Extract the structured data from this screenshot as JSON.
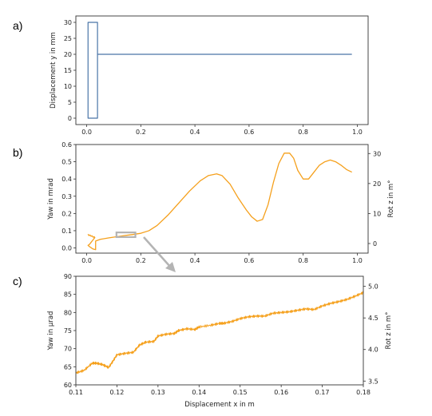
{
  "panel_labels": [
    "a)",
    "b)",
    "c)"
  ],
  "colors": {
    "blue": "#4a75a8",
    "orange": "#f5a01c",
    "gray": "#b4b4b4",
    "axis": "#333333"
  },
  "chart_data": [
    {
      "type": "line",
      "panel": "a)",
      "ylabel": "Displacement y in mm",
      "xlim": [
        -0.04,
        1.04
      ],
      "ylim": [
        -2,
        32
      ],
      "xticks": [
        "0.0",
        "0.2",
        "0.4",
        "0.6",
        "0.8",
        "1.0"
      ],
      "yticks": [
        "0",
        "5",
        "10",
        "15",
        "20",
        "25",
        "30"
      ],
      "series": [
        {
          "x": [
            0.005,
            0.005,
            0.04,
            0.04,
            0.005,
            0.005,
            0.04,
            0.04,
            0.98
          ],
          "y": [
            0,
            30,
            30,
            0,
            0,
            30,
            30,
            20,
            20
          ]
        }
      ]
    },
    {
      "type": "line",
      "panel": "b)",
      "ylabel": "Yaw in mrad",
      "y2label": "Rot z in m°",
      "xlim": [
        -0.04,
        1.04
      ],
      "ylim": [
        -0.03,
        0.6
      ],
      "y2lim": [
        -3.2,
        33
      ],
      "xticks": [
        "0.0",
        "0.2",
        "0.4",
        "0.6",
        "0.8",
        "1.0"
      ],
      "yticks": [
        "0.0",
        "0.1",
        "0.2",
        "0.3",
        "0.4",
        "0.5",
        "0.6"
      ],
      "y2ticks": [
        "0",
        "10",
        "20",
        "30"
      ],
      "inset_box": {
        "x": [
          0.11,
          0.18
        ],
        "y": [
          0.063,
          0.09
        ]
      },
      "series": [
        {
          "x": [
            0.005,
            0.008,
            0.012,
            0.016,
            0.02,
            0.024,
            0.028,
            0.03,
            0.03,
            0.025,
            0.02,
            0.015,
            0.01,
            0.005,
            0.005,
            0.01,
            0.016,
            0.022,
            0.028,
            0.033,
            0.033,
            0.05,
            0.08,
            0.11,
            0.14,
            0.17,
            0.2,
            0.23,
            0.26,
            0.3,
            0.34,
            0.38,
            0.42,
            0.45,
            0.48,
            0.5,
            0.53,
            0.56,
            0.59,
            0.61,
            0.63,
            0.65,
            0.67,
            0.69,
            0.71,
            0.73,
            0.75,
            0.765,
            0.78,
            0.8,
            0.82,
            0.84,
            0.86,
            0.88,
            0.9,
            0.92,
            0.94,
            0.96,
            0.98
          ],
          "y": [
            0.08,
            0.072,
            0.075,
            0.068,
            0.07,
            0.062,
            0.065,
            0.06,
            0.06,
            0.05,
            0.04,
            0.03,
            0.02,
            0.015,
            0.015,
            0.008,
            0.002,
            -0.005,
            -0.008,
            -0.01,
            0.04,
            0.05,
            0.058,
            0.065,
            0.072,
            0.078,
            0.085,
            0.1,
            0.13,
            0.19,
            0.26,
            0.33,
            0.39,
            0.42,
            0.43,
            0.42,
            0.37,
            0.29,
            0.22,
            0.18,
            0.155,
            0.165,
            0.25,
            0.38,
            0.49,
            0.55,
            0.55,
            0.52,
            0.45,
            0.4,
            0.4,
            0.44,
            0.48,
            0.5,
            0.51,
            0.5,
            0.48,
            0.455,
            0.44
          ]
        }
      ]
    },
    {
      "type": "line",
      "panel": "c)",
      "xlabel": "Displacement x in m",
      "ylabel": "Yaw in µrad",
      "y2label": "Rot z in m°",
      "xlim": [
        0.11,
        0.18
      ],
      "ylim": [
        60,
        90
      ],
      "y2lim": [
        3.44,
        5.16
      ],
      "xticks": [
        "0.11",
        "0.12",
        "0.13",
        "0.14",
        "0.15",
        "0.16",
        "0.17",
        "0.18"
      ],
      "yticks": [
        "60",
        "65",
        "70",
        "75",
        "80",
        "85",
        "90"
      ],
      "y2ticks": [
        "3.5",
        "4.0",
        "4.5",
        "5.0"
      ],
      "series": [
        {
          "x": [
            0.11,
            0.112,
            0.114,
            0.115,
            0.1165,
            0.118,
            0.119,
            0.12,
            0.122,
            0.124,
            0.1255,
            0.127,
            0.129,
            0.13,
            0.132,
            0.134,
            0.135,
            0.137,
            0.139,
            0.14,
            0.143,
            0.145,
            0.146,
            0.148,
            0.15,
            0.152,
            0.154,
            0.156,
            0.158,
            0.16,
            0.162,
            0.164,
            0.166,
            0.168,
            0.17,
            0.172,
            0.174,
            0.176,
            0.178,
            0.18
          ],
          "y": [
            63.3,
            64.0,
            66.0,
            66.0,
            65.6,
            64.8,
            66.5,
            68.3,
            68.7,
            69.0,
            71.0,
            71.8,
            72.0,
            73.5,
            74.0,
            74.2,
            75.0,
            75.5,
            75.3,
            76.0,
            76.5,
            77.0,
            77.0,
            77.5,
            78.3,
            78.8,
            79.0,
            79.0,
            79.8,
            80.0,
            80.2,
            80.6,
            81.0,
            80.8,
            81.8,
            82.5,
            83.0,
            83.6,
            84.5,
            85.5
          ]
        }
      ]
    }
  ]
}
